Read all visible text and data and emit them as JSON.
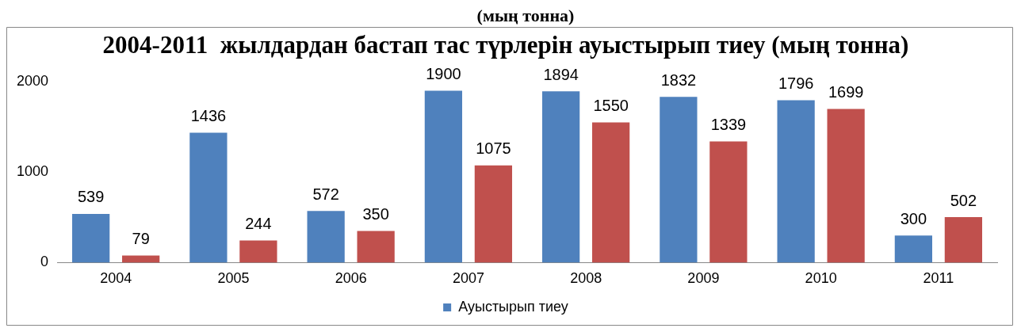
{
  "chart_data": {
    "type": "bar",
    "title": "2004-2011  жылдардан бастап тас түрлерін ауыстырып тиеу (мың тонна)",
    "annotations": [
      "(мың тонна)"
    ],
    "categories": [
      "2004",
      "2005",
      "2006",
      "2007",
      "2008",
      "2009",
      "2010",
      "2011"
    ],
    "series": [
      {
        "name": "Ауыстырып тиеу",
        "color": "#4f81bd",
        "values": [
          539,
          1436,
          572,
          1900,
          1894,
          1832,
          1796,
          300
        ]
      },
      {
        "color": "#c0504d",
        "values": [
          79,
          244,
          350,
          1075,
          1550,
          1339,
          1699,
          502
        ]
      }
    ],
    "ylim": [
      0,
      2000
    ],
    "yticks": [
      0,
      1000,
      2000
    ],
    "grid": false,
    "data_labels": true,
    "legend": "bottom"
  }
}
